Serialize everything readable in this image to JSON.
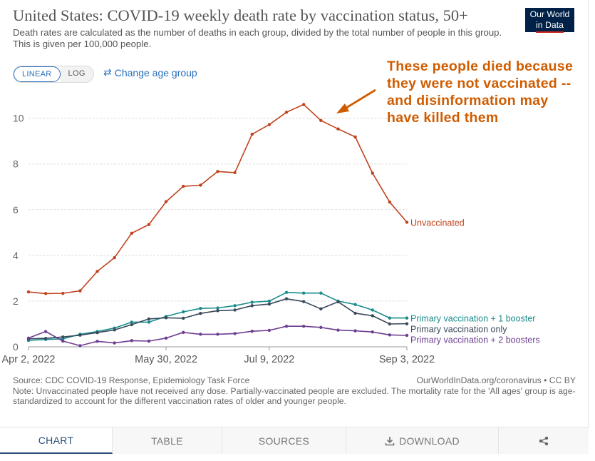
{
  "header": {
    "title": "United States: COVID-19 weekly death rate by vaccination status, 50+",
    "subtitle": "Death rates are calculated as the number of deaths in each group, divided by the total number of people in this group. This is given per 100,000 people.",
    "logo_line1": "Our World",
    "logo_line2": "in Data"
  },
  "controls": {
    "linear_label": "LINEAR",
    "log_label": "LOG",
    "change_age_label": "Change age group",
    "change_age_icon": "swap-arrows-icon"
  },
  "annotation": {
    "text": "These people died because they were not vaccinated -- and disinformation may have killed them",
    "color": "#cf5c00"
  },
  "chart_data": {
    "type": "line",
    "y_ticks": [
      0,
      2,
      4,
      6,
      8,
      10
    ],
    "ylim": [
      0,
      10.8
    ],
    "grid": true,
    "x_tick_labels": [
      "Apr 2, 2022",
      "May 30, 2022",
      "Jul 9, 2022",
      "Sep 3, 2022"
    ],
    "x_tick_positions": [
      0,
      8,
      14,
      22
    ],
    "n_points": 23,
    "series": [
      {
        "name": "Unvaccinated",
        "color": "#c0431e",
        "values": [
          2.4,
          2.33,
          2.34,
          2.45,
          3.3,
          3.9,
          4.97,
          5.35,
          6.35,
          7.02,
          7.07,
          7.67,
          7.62,
          9.3,
          9.72,
          10.26,
          10.6,
          9.9,
          9.53,
          9.18,
          7.6,
          6.33,
          5.45
        ]
      },
      {
        "name": "Primary vaccination + 1 booster",
        "color": "#1a8c8c",
        "values": [
          0.28,
          0.32,
          0.35,
          0.55,
          0.67,
          0.82,
          1.08,
          1.08,
          1.33,
          1.53,
          1.68,
          1.7,
          1.8,
          1.95,
          2.0,
          2.38,
          2.35,
          2.35,
          2.0,
          1.85,
          1.61,
          1.26,
          1.26
        ]
      },
      {
        "name": "Primary vaccination only",
        "color": "#3b4a5c",
        "values": [
          0.35,
          0.37,
          0.43,
          0.51,
          0.62,
          0.74,
          0.97,
          1.22,
          1.27,
          1.25,
          1.46,
          1.58,
          1.61,
          1.8,
          1.87,
          2.1,
          1.98,
          1.66,
          1.97,
          1.47,
          1.36,
          1.0,
          1.01
        ]
      },
      {
        "name": "Primary vaccination + 2 boosters",
        "color": "#6d3e91",
        "values": [
          0.38,
          0.67,
          0.25,
          0.05,
          0.24,
          0.17,
          0.27,
          0.25,
          0.38,
          0.63,
          0.55,
          0.55,
          0.58,
          0.68,
          0.72,
          0.9,
          0.9,
          0.85,
          0.73,
          0.7,
          0.65,
          0.52,
          0.5
        ]
      }
    ]
  },
  "footer": {
    "source": "Source: CDC COVID-19 Response, Epidemiology Task Force",
    "credit": "OurWorldInData.org/coronavirus • CC BY",
    "note": "Note: Unvaccinated people have not received any dose. Partially-vaccinated people are excluded. The mortality rate for the 'All ages' group is age-standardized to account for the different vaccination rates of older and younger people."
  },
  "tabs": [
    {
      "label": "CHART",
      "active": true
    },
    {
      "label": "TABLE",
      "active": false
    },
    {
      "label": "SOURCES",
      "active": false
    },
    {
      "label": "DOWNLOAD",
      "active": false,
      "icon": "download-icon"
    },
    {
      "label": "",
      "active": false,
      "icon": "share-icon"
    }
  ]
}
